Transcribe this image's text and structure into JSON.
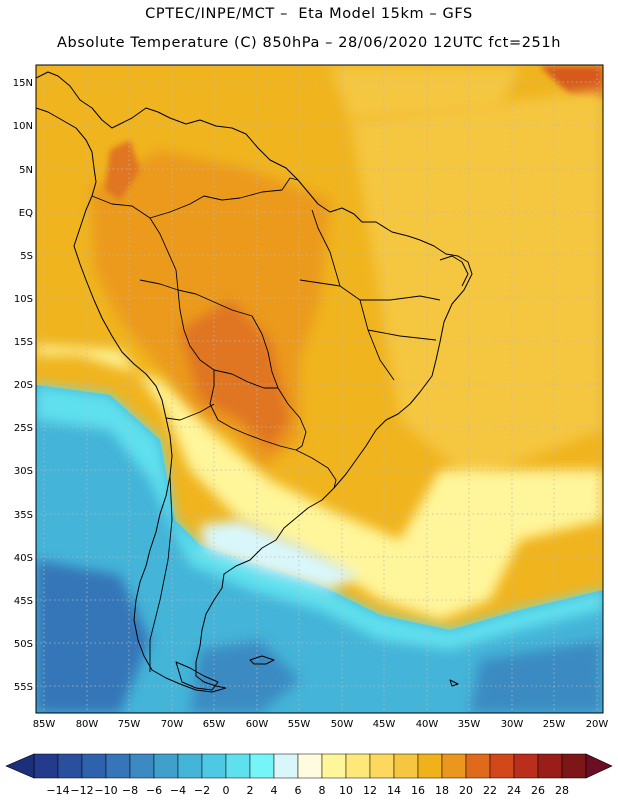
{
  "header": {
    "title_line1": "CPTEC/INPE/MCT –  Eta Model 15km – GFS",
    "title_line2": "Absolute Temperature (C) 850hPa – 28/06/2020 12UTC fct=251h"
  },
  "map": {
    "lat_labels": [
      "15N",
      "10N",
      "5N",
      "EQ",
      "5S",
      "10S",
      "15S",
      "20S",
      "25S",
      "30S",
      "35S",
      "40S",
      "45S",
      "50S",
      "55S"
    ],
    "lon_labels": [
      "85W",
      "80W",
      "75W",
      "70W",
      "65W",
      "60W",
      "55W",
      "50W",
      "45W",
      "40W",
      "35W",
      "30W",
      "25W",
      "20W"
    ],
    "grid": "dotted",
    "field": "temperature",
    "ocean_colors": {
      "north": "#f0b41e",
      "south": "#3aaed8"
    }
  },
  "colorbar": {
    "labels": [
      "-14",
      "-12",
      "-10",
      "-8",
      "-6",
      "-4",
      "-2",
      "0",
      "2",
      "4",
      "6",
      "8",
      "10",
      "12",
      "14",
      "16",
      "18",
      "20",
      "22",
      "24",
      "26",
      "28"
    ],
    "colors": [
      "#243a8c",
      "#2a4f9c",
      "#2f62ac",
      "#3676b8",
      "#3b8bc2",
      "#3fa0cc",
      "#44b4d8",
      "#4ec9e4",
      "#5fe0ee",
      "#76f5f8",
      "#d9f7fb",
      "#fffbe0",
      "#fff59a",
      "#ffe87a",
      "#fcd85e",
      "#f5c640",
      "#f0b21a",
      "#eb961c",
      "#e06a1c",
      "#d2481a",
      "#ba2e1c",
      "#9a1e18",
      "#7d1616"
    ],
    "left_arrow_color": "#1c2f7a",
    "right_arrow_color": "#6b0e24"
  }
}
